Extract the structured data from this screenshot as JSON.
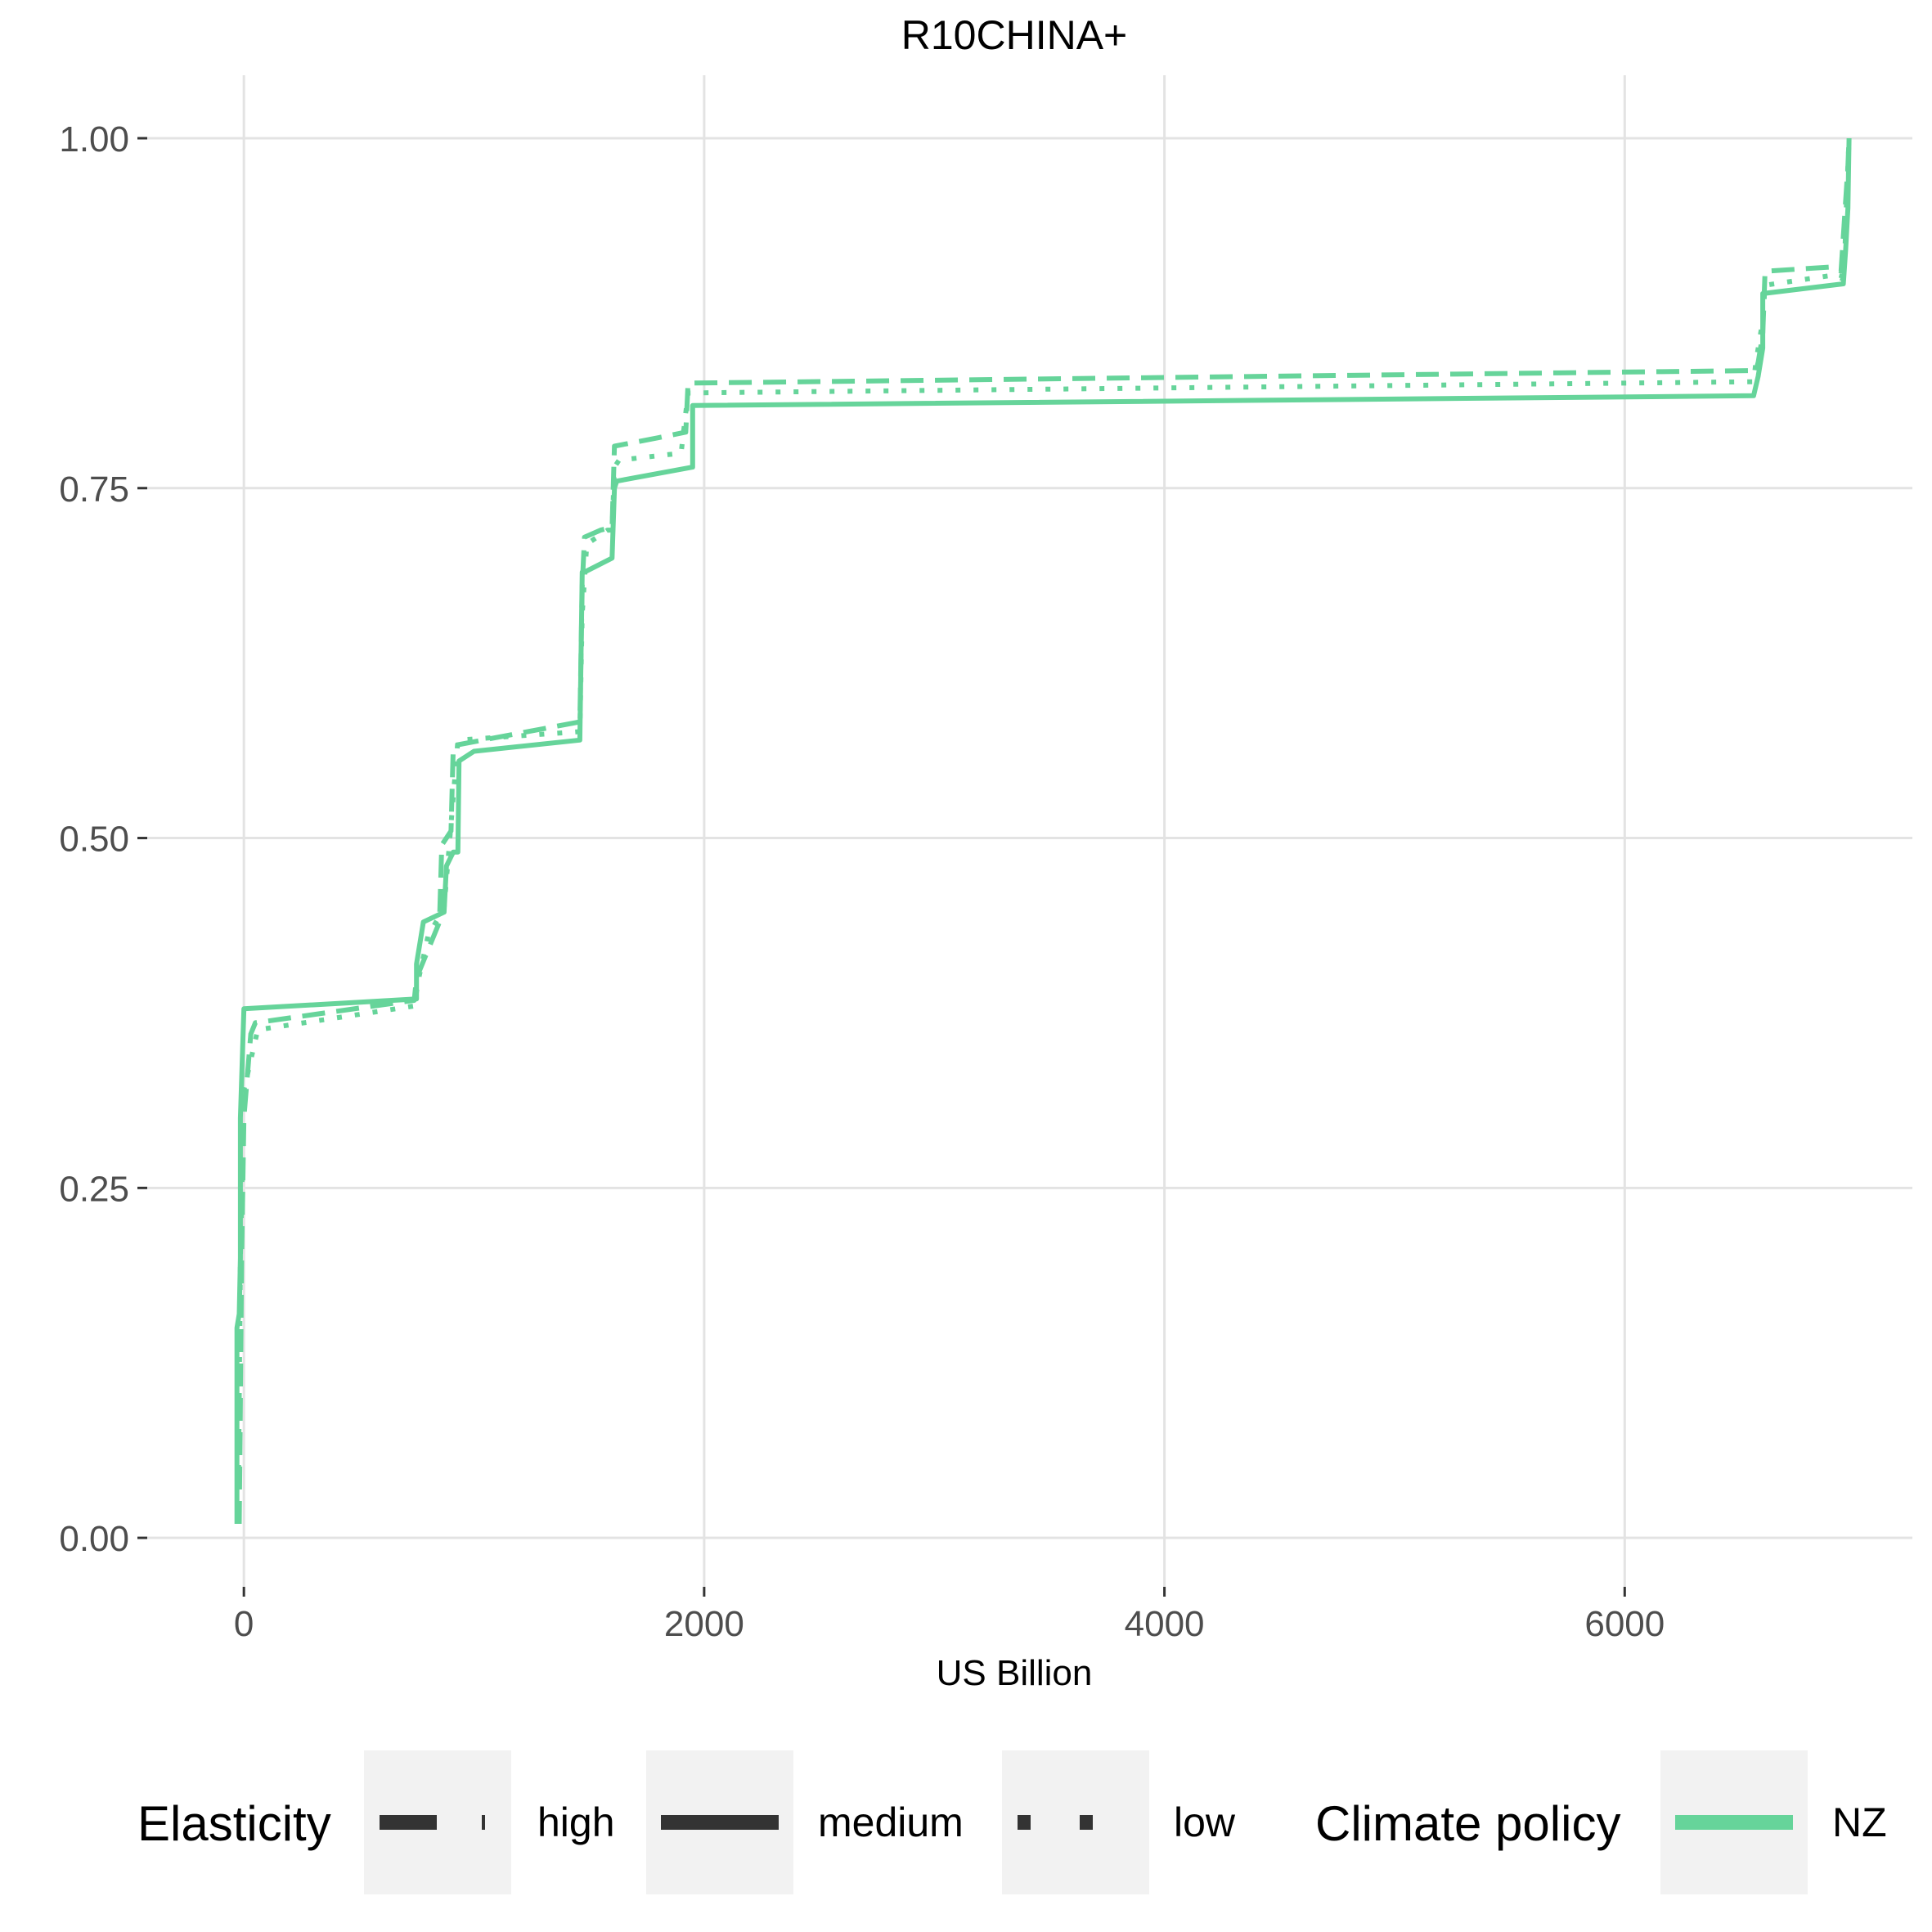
{
  "chart_data": {
    "type": "line",
    "title": "R10CHINA+",
    "xlabel": "US Billion",
    "ylabel": "",
    "xlim": [
      -420,
      7250
    ],
    "ylim": [
      -0.035,
      1.045
    ],
    "x_ticks": [
      0,
      2000,
      4000,
      6000
    ],
    "x_tick_labels": [
      "0",
      "2000",
      "4000",
      "6000"
    ],
    "y_ticks": [
      0,
      0.25,
      0.5,
      0.75,
      1.0
    ],
    "y_tick_labels": [
      "0.00",
      "0.25",
      "0.50",
      "0.75",
      "1.00"
    ],
    "grid": true,
    "color": "#66d49a",
    "legend_placement": "bottom",
    "legends": [
      {
        "title": "Elasticity",
        "entries": [
          {
            "label": "high",
            "linetype": "dashed"
          },
          {
            "label": "medium",
            "linetype": "solid"
          },
          {
            "label": "low",
            "linetype": "dotted"
          }
        ]
      },
      {
        "title": "Climate policy",
        "entries": [
          {
            "label": "NZ",
            "color": "#66d49a"
          }
        ]
      }
    ],
    "series": [
      {
        "name": "medium",
        "linetype": "solid",
        "color": "#66d49a",
        "x": [
          -30,
          -30,
          -20,
          -15,
          -15,
          0,
          750,
          750,
          780,
          870,
          880,
          910,
          930,
          935,
          1000,
          1460,
          1470,
          1480,
          1600,
          1610,
          1620,
          1950,
          1950,
          6560,
          6580,
          6600,
          6600,
          6950,
          6960,
          6970,
          6975
        ],
        "y": [
          0.01,
          0.15,
          0.16,
          0.2,
          0.3,
          0.378,
          0.385,
          0.41,
          0.44,
          0.447,
          0.48,
          0.49,
          0.49,
          0.555,
          0.562,
          0.57,
          0.69,
          0.69,
          0.7,
          0.75,
          0.755,
          0.765,
          0.809,
          0.816,
          0.83,
          0.85,
          0.889,
          0.896,
          0.92,
          0.95,
          1.0
        ]
      },
      {
        "name": "high",
        "linetype": "dashed",
        "color": "#66d49a",
        "x": [
          -20,
          -15,
          -10,
          0,
          30,
          50,
          740,
          750,
          850,
          860,
          900,
          910,
          1460,
          1470,
          1480,
          1550,
          1600,
          1610,
          1800,
          1920,
          1930,
          6570,
          6580,
          6600,
          6610,
          6900,
          6940,
          6950,
          6970,
          6975
        ],
        "y": [
          0.01,
          0.1,
          0.2,
          0.3,
          0.36,
          0.368,
          0.384,
          0.4,
          0.44,
          0.495,
          0.505,
          0.566,
          0.583,
          0.68,
          0.715,
          0.72,
          0.722,
          0.78,
          0.786,
          0.79,
          0.825,
          0.834,
          0.84,
          0.86,
          0.905,
          0.908,
          0.905,
          0.93,
          0.98,
          1.0
        ]
      },
      {
        "name": "low",
        "linetype": "dotted",
        "color": "#66d49a",
        "x": [
          -25,
          -20,
          -15,
          0,
          60,
          740,
          760,
          800,
          870,
          890,
          930,
          1460,
          1470,
          1490,
          1580,
          1600,
          1610,
          1630,
          1900,
          1930,
          6560,
          6570,
          6600,
          6610,
          6900,
          6940,
          6955,
          6965,
          6975
        ],
        "y": [
          0.01,
          0.1,
          0.2,
          0.32,
          0.363,
          0.38,
          0.4,
          0.43,
          0.45,
          0.49,
          0.57,
          0.576,
          0.66,
          0.71,
          0.72,
          0.72,
          0.765,
          0.77,
          0.775,
          0.818,
          0.826,
          0.84,
          0.87,
          0.895,
          0.902,
          0.9,
          0.91,
          0.96,
          1.0
        ]
      }
    ]
  }
}
